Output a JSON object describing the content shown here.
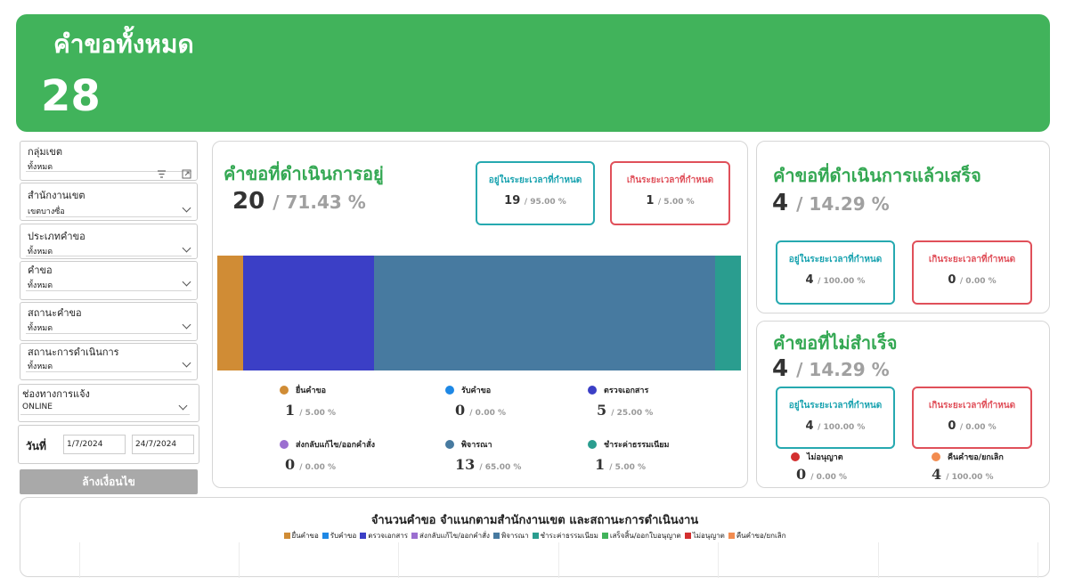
{
  "header": {
    "title": "คำขอทั้งหมด",
    "count": "28",
    "color": "#41b35b"
  },
  "filters": {
    "district_group": {
      "label": "กลุ่มเขต",
      "value": "ทั้งหมด"
    },
    "district_office": {
      "label": "สำนักงานเขต",
      "value": "เขตบางซื่อ"
    },
    "request_type": {
      "label": "ประเภทคำขอ",
      "value": "ทั้งหมด"
    },
    "request": {
      "label": "คำขอ",
      "value": "ทั้งหมด"
    },
    "request_status": {
      "label": "สถานะคำขอ",
      "value": "ทั้งหมด"
    },
    "process_status": {
      "label": "สถานะการดำเนินการ",
      "value": "ทั้งหมด"
    },
    "channel": {
      "label": "ช่องทางการแจ้ง",
      "value": "ONLINE"
    },
    "date": {
      "label": "วันที่",
      "from": "1/7/2024",
      "to": "24/7/2024"
    },
    "clear_label": "ล้างเงื่อนไข"
  },
  "in_progress": {
    "title": "คำขอที่ดำเนินการอยู่",
    "count": "20",
    "pct": "/ 71.43 %",
    "on_time": {
      "label": "อยู่ในระยะเวลาที่กำหนด",
      "value": "19",
      "pct": "/ 95.00 %"
    },
    "overdue": {
      "label": "เกินระยะเวลาที่กำหนด",
      "value": "1",
      "pct": "/ 5.00 %"
    },
    "segments": [
      {
        "name": "ยื่นคำขอ",
        "value": "1",
        "pct": "/ 5.00 %",
        "share": 5,
        "color": "#d08c35"
      },
      {
        "name": "รับคำขอ",
        "value": "0",
        "pct": "/ 0.00 %",
        "share": 0,
        "color": "#1e88e5"
      },
      {
        "name": "ตรวจเอกสาร",
        "value": "5",
        "pct": "/ 25.00 %",
        "share": 25,
        "color": "#3b3fc6"
      },
      {
        "name": "ส่งกลับแก้ไข/ออกคำสั่ง",
        "value": "0",
        "pct": "/ 0.00 %",
        "share": 0,
        "color": "#9b6fd0"
      },
      {
        "name": "พิจารณา",
        "value": "13",
        "pct": "/ 65.00 %",
        "share": 65,
        "color": "#477aa0"
      },
      {
        "name": "ชำระค่าธรรมเนียม",
        "value": "1",
        "pct": "/ 5.00 %",
        "share": 5,
        "color": "#2a9d8f"
      }
    ]
  },
  "completed": {
    "title": "คำขอที่ดำเนินการแล้วเสร็จ",
    "count": "4",
    "pct": "/ 14.29 %",
    "on_time": {
      "label": "อยู่ในระยะเวลาที่กำหนด",
      "value": "4",
      "pct": "/ 100.00 %"
    },
    "overdue": {
      "label": "เกินระยะเวลาที่กำหนด",
      "value": "0",
      "pct": "/ 0.00 %"
    }
  },
  "failed": {
    "title": "คำขอที่ไม่สำเร็จ",
    "count": "4",
    "pct": "/ 14.29 %",
    "on_time": {
      "label": "อยู่ในระยะเวลาที่กำหนด",
      "value": "4",
      "pct": "/ 100.00 %"
    },
    "overdue": {
      "label": "เกินระยะเวลาที่กำหนด",
      "value": "0",
      "pct": "/ 0.00 %"
    },
    "not_allowed": {
      "name": "ไม่อนุญาต",
      "value": "0",
      "pct": "/ 0.00 %",
      "color": "#d32f2f"
    },
    "returned": {
      "name": "คืนคำขอ/ยกเลิก",
      "value": "4",
      "pct": "/ 100.00 %",
      "color": "#f28c50"
    }
  },
  "bottom_chart": {
    "title": "จำนวนคำขอ  จำแนกตามสำนักงานเขต และสถานะการดำเนินงาน",
    "legend": [
      {
        "name": "ยื่นคำขอ",
        "color": "#d08c35"
      },
      {
        "name": "รับคำขอ",
        "color": "#1e88e5"
      },
      {
        "name": "ตรวจเอกสาร",
        "color": "#3b3fc6"
      },
      {
        "name": "ส่งกลับแก้ไข/ออกคำสั่ง",
        "color": "#9b6fd0"
      },
      {
        "name": "พิจารณา",
        "color": "#477aa0"
      },
      {
        "name": "ชำระค่าธรรมเนียม",
        "color": "#2a9d8f"
      },
      {
        "name": "เสร็จสิ้น/ออกใบอนุญาต",
        "color": "#41b35b"
      },
      {
        "name": "ไม่อนุญาต",
        "color": "#d32f2f"
      },
      {
        "name": "คืนคำขอ/ยกเลิก",
        "color": "#f28c50"
      }
    ]
  }
}
